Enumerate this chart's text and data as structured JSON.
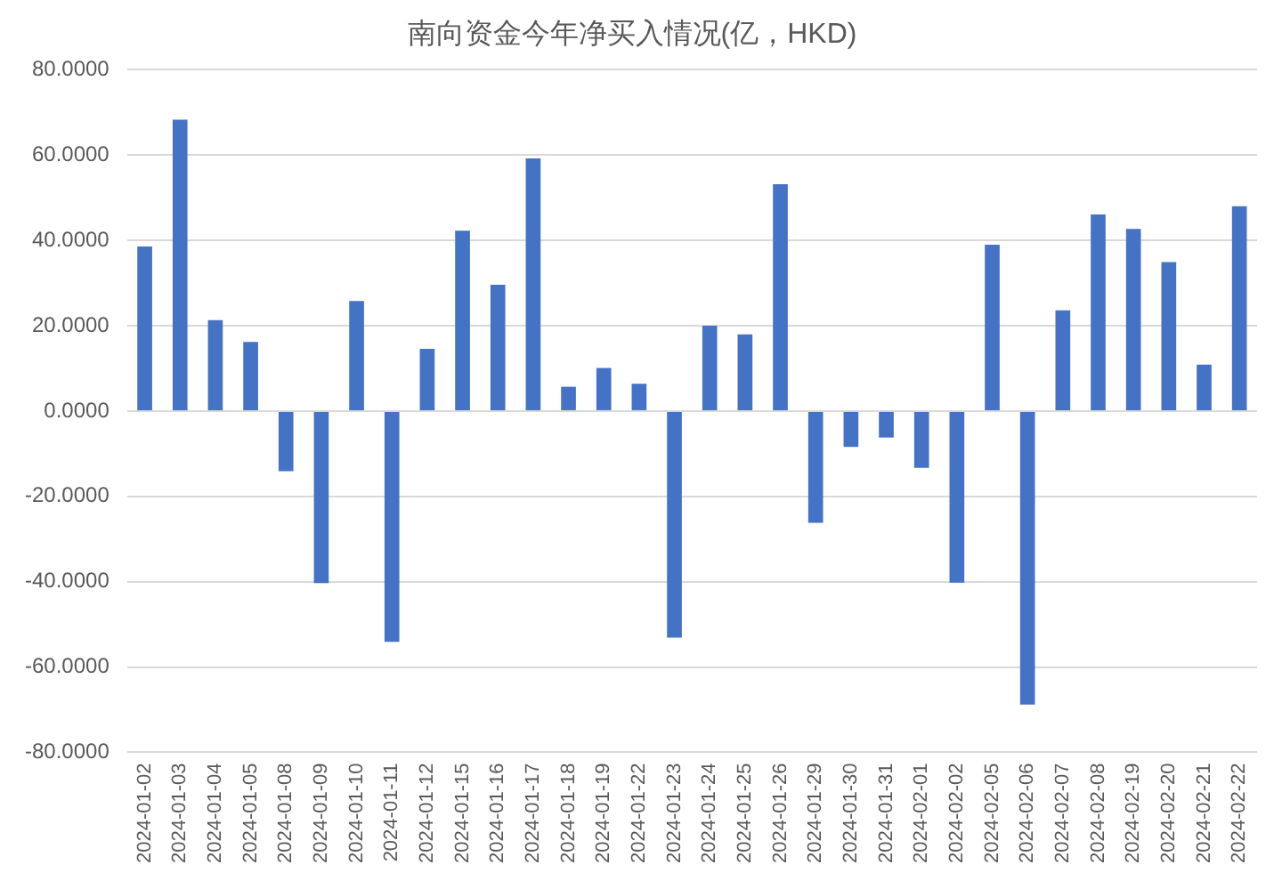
{
  "chart_data": {
    "type": "bar",
    "title": "南向资金今年净买入情况(亿，HKD)",
    "categories": [
      "2024-01-02",
      "2024-01-03",
      "2024-01-04",
      "2024-01-05",
      "2024-01-08",
      "2024-01-09",
      "2024-01-10",
      "2024-01-11",
      "2024-01-12",
      "2024-01-15",
      "2024-01-16",
      "2024-01-17",
      "2024-01-18",
      "2024-01-19",
      "2024-01-22",
      "2024-01-23",
      "2024-01-24",
      "2024-01-25",
      "2024-01-26",
      "2024-01-29",
      "2024-01-30",
      "2024-01-31",
      "2024-02-01",
      "2024-02-02",
      "2024-02-05",
      "2024-02-06",
      "2024-02-07",
      "2024-02-08",
      "2024-02-19",
      "2024-02-20",
      "2024-02-21",
      "2024-02-22"
    ],
    "values": [
      38.6,
      68.3,
      21.3,
      16.2,
      -14.1,
      -40.3,
      25.8,
      -54.1,
      14.6,
      42.3,
      29.6,
      59.2,
      5.7,
      10.1,
      6.4,
      -53.1,
      20.0,
      18.0,
      53.2,
      -26.2,
      -8.4,
      -6.2,
      -13.3,
      -40.2,
      39.0,
      -68.8,
      23.6,
      46.1,
      42.7,
      34.9,
      10.9,
      48.0
    ],
    "color": "#4472c4",
    "ylim": [
      -80,
      80
    ],
    "yticks": [
      {
        "value": -80,
        "label": "-80.0000"
      },
      {
        "value": -60,
        "label": "-60.0000"
      },
      {
        "value": -40,
        "label": "-40.0000"
      },
      {
        "value": -20,
        "label": "-20.0000"
      },
      {
        "value": 0,
        "label": "0.0000"
      },
      {
        "value": 20,
        "label": "20.0000"
      },
      {
        "value": 40,
        "label": "40.0000"
      },
      {
        "value": 60,
        "label": "60.0000"
      },
      {
        "value": 80,
        "label": "80.0000"
      }
    ],
    "grid": "y"
  }
}
